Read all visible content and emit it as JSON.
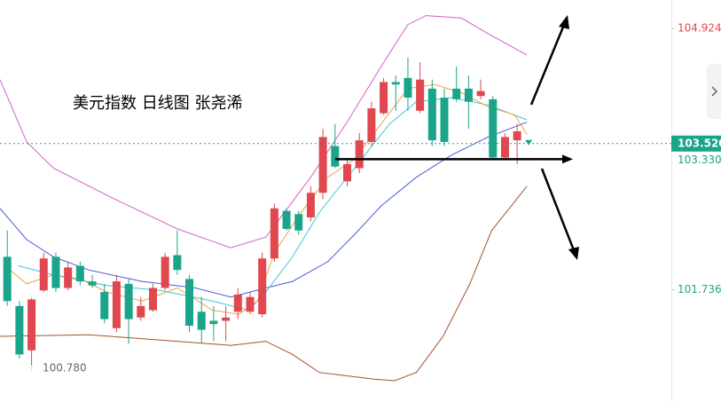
{
  "chart_data": {
    "type": "candlestick",
    "title": "美元指数 日线图 张尧浠",
    "ylim": [
      100.37,
      105.27
    ],
    "xlim": [
      -0.6,
      54.7
    ],
    "yticks": [
      104.924,
      101.736
    ],
    "up_color": "#e0474f",
    "down_color": "#1aa58a",
    "open": [
      102.14,
      101.54,
      101.0,
      101.73,
      102.14,
      101.76,
      102.03,
      101.84,
      101.71,
      101.27,
      101.81,
      101.4,
      101.49,
      101.76,
      102.16,
      101.87,
      101.47,
      101.36,
      101.36,
      101.47,
      101.47,
      101.44,
      102.12,
      102.7,
      102.66,
      102.62,
      102.92,
      103.49,
      103.06,
      103.22,
      103.54,
      103.89,
      104.27,
      104.32,
      103.92,
      104.19,
      104.08,
      104.19,
      104.19,
      104.1,
      104.06,
      103.35,
      103.56
    ],
    "high": [
      102.46,
      101.6,
      101.64,
      102.19,
      102.19,
      102.08,
      102.08,
      101.92,
      101.81,
      101.92,
      101.87,
      101.65,
      101.81,
      102.19,
      102.46,
      101.92,
      101.65,
      101.54,
      101.54,
      101.76,
      101.71,
      102.19,
      102.79,
      102.73,
      102.7,
      103.0,
      103.7,
      103.76,
      103.33,
      103.65,
      104.03,
      104.32,
      104.35,
      104.57,
      104.51,
      104.3,
      104.19,
      104.46,
      104.35,
      104.3,
      104.1,
      103.65,
      103.76
    ],
    "low": [
      101.54,
      100.9,
      100.82,
      101.71,
      101.71,
      101.73,
      101.79,
      101.76,
      101.33,
      101.22,
      101.08,
      101.36,
      101.47,
      101.73,
      101.92,
      101.22,
      101.08,
      101.11,
      101.11,
      101.38,
      101.44,
      101.4,
      102.08,
      102.46,
      102.41,
      102.57,
      102.84,
      103.22,
      103.0,
      103.16,
      103.49,
      103.87,
      103.92,
      103.92,
      103.89,
      103.49,
      103.49,
      104.03,
      103.7,
      104.06,
      103.33,
      103.33,
      103.27
    ],
    "close": [
      101.6,
      100.95,
      101.62,
      102.12,
      101.76,
      102.01,
      101.84,
      101.79,
      101.38,
      101.84,
      101.38,
      101.54,
      101.76,
      102.14,
      101.98,
      101.3,
      101.25,
      101.32,
      101.4,
      101.68,
      101.65,
      102.12,
      102.73,
      102.48,
      102.46,
      102.92,
      103.6,
      103.24,
      103.27,
      103.56,
      103.95,
      104.27,
      104.24,
      104.08,
      104.3,
      103.56,
      103.54,
      104.06,
      104.03,
      104.16,
      103.35,
      103.6,
      103.67
    ],
    "lines": [
      {
        "color": "#d65ec8",
        "x": [
          -0.6,
          1.6,
          3.8,
          8.9,
          14.0,
          18.4,
          21.3,
          25.0,
          27.9,
          30.8,
          33.0,
          34.5,
          37.4,
          39.6,
          42.8
        ],
        "values": [
          104.3,
          103.54,
          103.22,
          102.84,
          102.48,
          102.25,
          102.38,
          103.11,
          103.76,
          104.46,
          104.97,
          105.08,
          105.05,
          104.86,
          104.6
        ]
      },
      {
        "color": "#a0522d",
        "x": [
          -0.6,
          6.7,
          14.0,
          18.4,
          21.3,
          23.5,
          25.7,
          30.1,
          31.9,
          33.7,
          35.9,
          38.1,
          39.9,
          42.8
        ],
        "values": [
          101.17,
          101.19,
          101.11,
          101.06,
          101.11,
          100.95,
          100.73,
          100.65,
          100.63,
          100.73,
          101.17,
          101.81,
          102.46,
          103.0
        ]
      },
      {
        "color": "#4a5bd6",
        "x": [
          -0.6,
          1.6,
          3.8,
          6.7,
          11.1,
          15.5,
          18.4,
          21.3,
          23.5,
          26.4,
          28.6,
          30.8,
          33.7,
          36.6,
          39.6,
          42.8
        ],
        "values": [
          102.73,
          102.35,
          102.14,
          101.98,
          101.84,
          101.76,
          101.65,
          101.76,
          101.84,
          102.08,
          102.41,
          102.76,
          103.11,
          103.38,
          103.6,
          103.78
        ]
      },
      {
        "color": "#3cc8d6",
        "x": [
          0.9,
          3.8,
          8.2,
          12.6,
          16.9,
          19.9,
          21.3,
          23.5,
          25.7,
          28.6,
          31.5,
          33.7,
          36.6,
          39.6,
          42.8
        ],
        "values": [
          102.03,
          101.92,
          101.79,
          101.73,
          101.6,
          101.49,
          101.71,
          102.14,
          102.68,
          103.22,
          103.76,
          104.03,
          104.08,
          103.99,
          103.81
        ]
      },
      {
        "color": "#f0a040",
        "x": [
          -0.2,
          1.6,
          3.8,
          6.0,
          8.2,
          11.1,
          14.0,
          16.9,
          19.1,
          20.6,
          22.0,
          24.2,
          26.4,
          28.6,
          30.8,
          33.0,
          35.2,
          37.4,
          39.6,
          41.8,
          42.8
        ],
        "values": [
          102.03,
          101.81,
          101.92,
          101.87,
          101.71,
          101.6,
          101.76,
          101.49,
          101.44,
          101.6,
          102.19,
          102.68,
          103.11,
          103.33,
          103.76,
          104.19,
          104.24,
          104.14,
          103.97,
          103.87,
          103.63
        ]
      }
    ],
    "last_price": {
      "value": 103.52,
      "label": "103.520"
    },
    "level": {
      "value": 103.33,
      "label": "103.330"
    },
    "low_label": {
      "value": 100.78,
      "label": "100.780"
    }
  }
}
